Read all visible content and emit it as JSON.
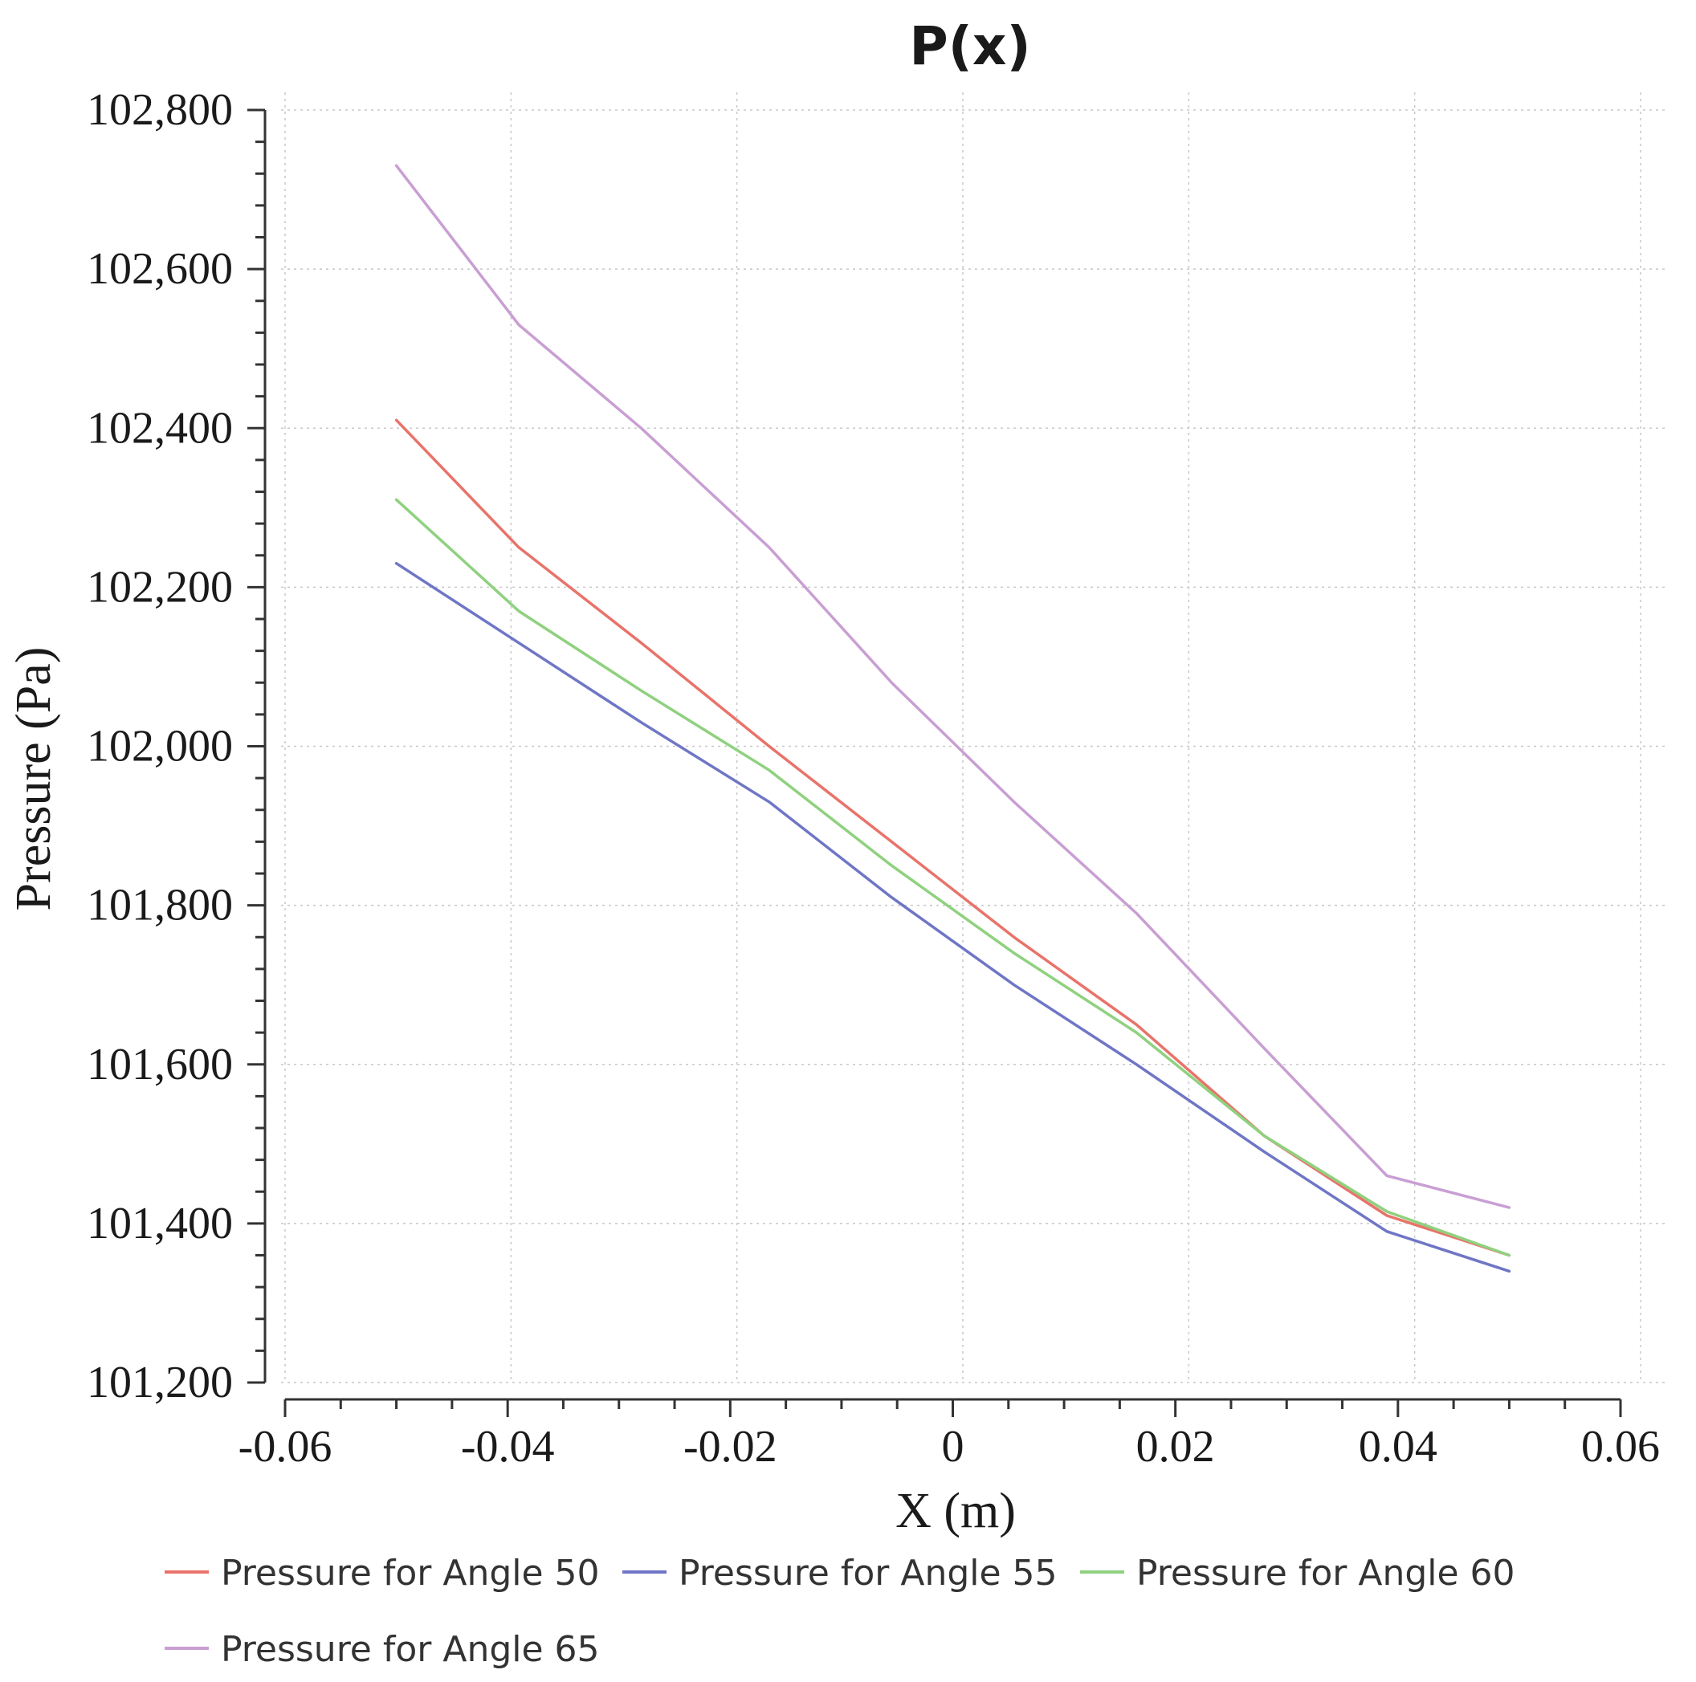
{
  "chart_data": {
    "type": "line",
    "title": "P(x)",
    "xlabel": "X (m)",
    "ylabel": "Pressure (Pa)",
    "xlim": [
      -0.06,
      0.06
    ],
    "ylim": [
      101200,
      102800
    ],
    "x_ticks": [
      -0.06,
      -0.04,
      -0.02,
      0,
      0.02,
      0.04,
      0.06
    ],
    "x_tick_labels": [
      "-0.06",
      "-0.04",
      "-0.02",
      "0",
      "0.02",
      "0.04",
      "0.06"
    ],
    "y_ticks": [
      101200,
      101400,
      101600,
      101800,
      102000,
      102200,
      102400,
      102600,
      102800
    ],
    "y_tick_labels": [
      "101,200",
      "101,400",
      "101,600",
      "101,800",
      "102,000",
      "102,200",
      "102,400",
      "102,600",
      "102,800"
    ],
    "grid": true,
    "legend_position": "bottom",
    "series": [
      {
        "name": "Pressure for Angle 50",
        "color": "#e8736a",
        "x": [
          -0.05,
          -0.039,
          -0.028,
          -0.0165,
          -0.0055,
          0.0055,
          0.0165,
          0.028,
          0.039,
          0.05
        ],
        "y": [
          102410,
          102250,
          102130,
          102000,
          101880,
          101760,
          101650,
          101510,
          101410,
          101360
        ]
      },
      {
        "name": "Pressure for Angle 55",
        "color": "#6f76c6",
        "x": [
          -0.05,
          -0.039,
          -0.028,
          -0.0165,
          -0.0055,
          0.0055,
          0.0165,
          0.028,
          0.039,
          0.05
        ],
        "y": [
          102230,
          102130,
          102030,
          101930,
          101810,
          101700,
          101600,
          101490,
          101390,
          101340
        ]
      },
      {
        "name": "Pressure for Angle 60",
        "color": "#8fd17f",
        "x": [
          -0.05,
          -0.039,
          -0.028,
          -0.0165,
          -0.0055,
          0.0055,
          0.0165,
          0.028,
          0.039,
          0.05
        ],
        "y": [
          102310,
          102170,
          102070,
          101970,
          101850,
          101740,
          101640,
          101510,
          101415,
          101360
        ]
      },
      {
        "name": "Pressure for Angle 65",
        "color": "#c99fd3",
        "x": [
          -0.05,
          -0.039,
          -0.028,
          -0.0165,
          -0.0055,
          0.0055,
          0.0165,
          0.028,
          0.039,
          0.05
        ],
        "y": [
          102730,
          102530,
          102400,
          102250,
          102080,
          101930,
          101790,
          101620,
          101460,
          101420
        ]
      }
    ]
  }
}
